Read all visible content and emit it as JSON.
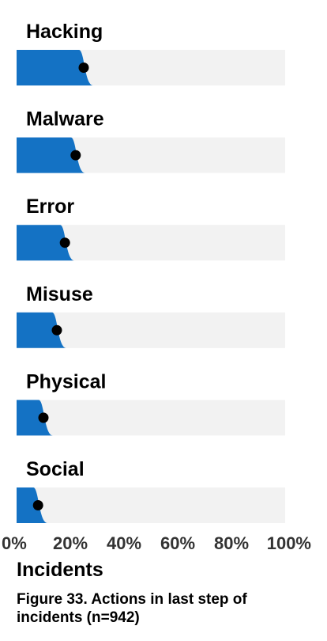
{
  "chart_data": {
    "type": "bar",
    "categories": [
      "Hacking",
      "Malware",
      "Error",
      "Misuse",
      "Physical",
      "Social"
    ],
    "values": [
      25,
      22,
      18,
      15,
      10,
      8
    ],
    "xlabel": "Incidents",
    "xlim": [
      0,
      100
    ],
    "xticks": [
      "0%",
      "20%",
      "40%",
      "60%",
      "80%",
      "100%"
    ],
    "colors": {
      "bar": "#1472c4",
      "track": "#f2f2f2",
      "point": "#000000"
    }
  },
  "caption": "Figure 33. Actions in last step of incidents (n=942)"
}
